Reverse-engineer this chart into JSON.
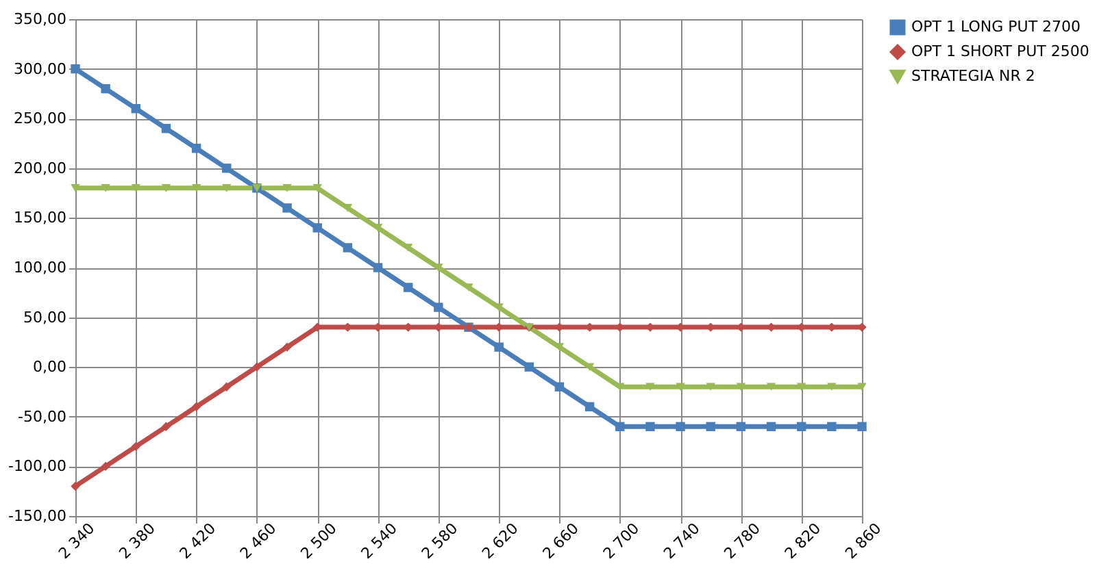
{
  "chart_data": {
    "type": "line",
    "x": [
      2340,
      2360,
      2380,
      2400,
      2420,
      2440,
      2460,
      2480,
      2500,
      2520,
      2540,
      2560,
      2580,
      2600,
      2620,
      2640,
      2660,
      2680,
      2700,
      2720,
      2740,
      2760,
      2780,
      2800,
      2820,
      2840,
      2860
    ],
    "series": [
      {
        "name": "OPT 1 LONG PUT 2700",
        "color": "#4a7ebb",
        "marker": "square",
        "values": [
          300,
          280,
          260,
          240,
          220,
          200,
          180,
          160,
          140,
          120,
          100,
          80,
          60,
          40,
          20,
          0,
          -20,
          -40,
          -60,
          -60,
          -60,
          -60,
          -60,
          -60,
          -60,
          -60,
          -60
        ]
      },
      {
        "name": "OPT 1 SHORT PUT 2500",
        "color": "#be4b48",
        "marker": "diamond",
        "values": [
          -120,
          -100,
          -80,
          -60,
          -40,
          -20,
          0,
          20,
          40,
          40,
          40,
          40,
          40,
          40,
          40,
          40,
          40,
          40,
          40,
          40,
          40,
          40,
          40,
          40,
          40,
          40,
          40
        ]
      },
      {
        "name": "STRATEGIA NR 2",
        "color": "#98b954",
        "marker": "triangle-down",
        "values": [
          180,
          180,
          180,
          180,
          180,
          180,
          180,
          180,
          180,
          160,
          140,
          120,
          100,
          80,
          60,
          40,
          20,
          0,
          -20,
          -20,
          -20,
          -20,
          -20,
          -20,
          -20,
          -20,
          -20
        ]
      }
    ],
    "xlim": [
      2340,
      2860
    ],
    "xticks": [
      {
        "value": 2340,
        "label": "2 340"
      },
      {
        "value": 2380,
        "label": "2 380"
      },
      {
        "value": 2420,
        "label": "2 420"
      },
      {
        "value": 2460,
        "label": "2 460"
      },
      {
        "value": 2500,
        "label": "2 500"
      },
      {
        "value": 2540,
        "label": "2 540"
      },
      {
        "value": 2580,
        "label": "2 580"
      },
      {
        "value": 2620,
        "label": "2 620"
      },
      {
        "value": 2660,
        "label": "2 660"
      },
      {
        "value": 2700,
        "label": "2 700"
      },
      {
        "value": 2740,
        "label": "2 740"
      },
      {
        "value": 2780,
        "label": "2 780"
      },
      {
        "value": 2820,
        "label": "2 820"
      },
      {
        "value": 2860,
        "label": "2 860"
      }
    ],
    "ylim": [
      -150,
      350
    ],
    "yticks": [
      {
        "value": -150,
        "label": "-150,00"
      },
      {
        "value": -100,
        "label": "-100,00"
      },
      {
        "value": -50,
        "label": "-50,00"
      },
      {
        "value": 0,
        "label": "0,00"
      },
      {
        "value": 50,
        "label": "50,00"
      },
      {
        "value": 100,
        "label": "100,00"
      },
      {
        "value": 150,
        "label": "150,00"
      },
      {
        "value": 200,
        "label": "200,00"
      },
      {
        "value": 250,
        "label": "250,00"
      },
      {
        "value": 300,
        "label": "300,00"
      },
      {
        "value": 350,
        "label": "350,00"
      }
    ],
    "grid": true,
    "legend": "right",
    "line_style": "solid"
  }
}
